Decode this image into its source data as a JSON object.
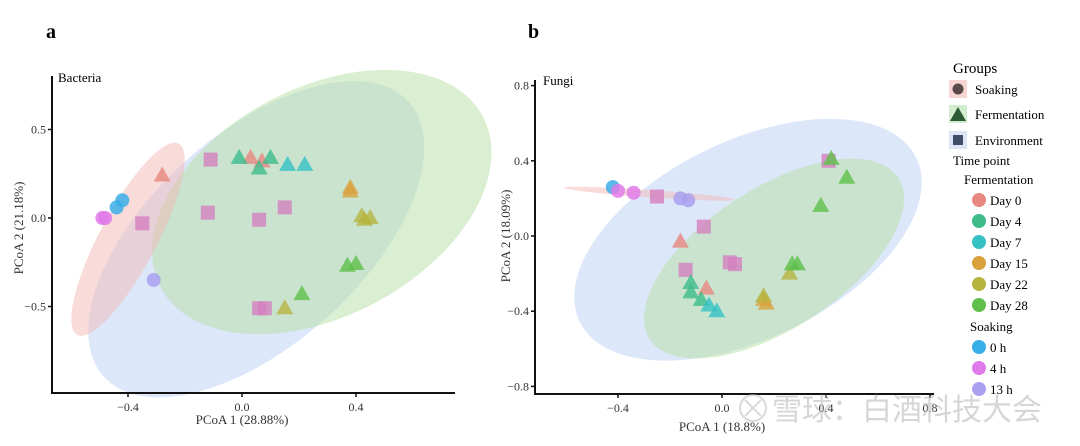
{
  "colors": {
    "day0": "#e8877f",
    "day4": "#3dbb8b",
    "day7": "#35c2c4",
    "day15": "#d9a13b",
    "day22": "#b7b43e",
    "day28": "#5fbf4a",
    "soak0h": "#3aaee8",
    "soak4h": "#e07ae8",
    "soak13h": "#a9a1ef",
    "env_square": "#d47fbf",
    "ellipse_soaking": "#f4b9b5",
    "ellipse_fermentation": "#b5dfa4",
    "ellipse_environment": "#b9cff6",
    "group_soaking_icon": "#5a4a4a",
    "group_fermentation_icon": "#2f5a36",
    "group_environment_icon": "#3f4e66"
  },
  "chart_data": [
    {
      "type": "scatter",
      "panel_label": "a",
      "title": "Bacteria",
      "xlabel": "PCoA 1 (28.88%)",
      "ylabel": "PCoA 2 (21.18%)",
      "xlim": [
        -0.78,
        1.05
      ],
      "ylim": [
        -0.98,
        0.78
      ],
      "xticks": [
        -0.4,
        0.0,
        0.4
      ],
      "xtick_labels": [
        "-0.4",
        "0.0",
        "0.4"
      ],
      "yticks": [
        -0.5,
        0.0,
        0.5
      ],
      "ytick_labels": [
        "-0.5",
        "0.0",
        "0.5"
      ],
      "grid": false,
      "ellipses": [
        {
          "group": "Environment",
          "cx": 0.05,
          "cy": -0.12,
          "rx": 0.72,
          "ry": 0.37,
          "angle": -42
        },
        {
          "group": "Fermentation",
          "cx": 0.28,
          "cy": 0.09,
          "rx": 0.64,
          "ry": 0.4,
          "angle": -28
        },
        {
          "group": "Soaking",
          "cx": -0.4,
          "cy": -0.12,
          "rx": 0.38,
          "ry": 0.1,
          "angle": -62
        }
      ],
      "points": [
        {
          "group": "Soaking",
          "time": "0 h",
          "x": -0.42,
          "y": 0.1
        },
        {
          "group": "Soaking",
          "time": "0 h",
          "x": -0.44,
          "y": 0.06
        },
        {
          "group": "Soaking",
          "time": "4 h",
          "x": -0.49,
          "y": 0.0
        },
        {
          "group": "Soaking",
          "time": "4 h",
          "x": -0.48,
          "y": 0.0
        },
        {
          "group": "Soaking",
          "time": "13 h",
          "x": -0.31,
          "y": -0.35
        },
        {
          "group": "Environment",
          "time": "",
          "x": -0.35,
          "y": -0.03
        },
        {
          "group": "Environment",
          "time": "",
          "x": -0.11,
          "y": 0.33
        },
        {
          "group": "Environment",
          "time": "",
          "x": -0.12,
          "y": 0.03
        },
        {
          "group": "Environment",
          "time": "",
          "x": 0.06,
          "y": -0.01
        },
        {
          "group": "Environment",
          "time": "",
          "x": 0.15,
          "y": 0.06
        },
        {
          "group": "Environment",
          "time": "",
          "x": 0.06,
          "y": -0.51
        },
        {
          "group": "Environment",
          "time": "",
          "x": 0.08,
          "y": -0.51
        },
        {
          "group": "Fermentation",
          "time": "Day 0",
          "x": -0.28,
          "y": 0.24
        },
        {
          "group": "Fermentation",
          "time": "Day 0",
          "x": 0.03,
          "y": 0.34
        },
        {
          "group": "Fermentation",
          "time": "Day 0",
          "x": 0.07,
          "y": 0.32
        },
        {
          "group": "Fermentation",
          "time": "Day 4",
          "x": -0.01,
          "y": 0.34
        },
        {
          "group": "Fermentation",
          "time": "Day 4",
          "x": 0.06,
          "y": 0.28
        },
        {
          "group": "Fermentation",
          "time": "Day 4",
          "x": 0.1,
          "y": 0.34
        },
        {
          "group": "Fermentation",
          "time": "Day 7",
          "x": 0.16,
          "y": 0.3
        },
        {
          "group": "Fermentation",
          "time": "Day 7",
          "x": 0.22,
          "y": 0.3
        },
        {
          "group": "Fermentation",
          "time": "Day 15",
          "x": 0.38,
          "y": 0.17
        },
        {
          "group": "Fermentation",
          "time": "Day 15",
          "x": 0.38,
          "y": 0.15
        },
        {
          "group": "Fermentation",
          "time": "Day 22",
          "x": 0.42,
          "y": 0.01
        },
        {
          "group": "Fermentation",
          "time": "Day 22",
          "x": 0.45,
          "y": 0.0
        },
        {
          "group": "Fermentation",
          "time": "Day 22",
          "x": 0.43,
          "y": -0.01
        },
        {
          "group": "Fermentation",
          "time": "Day 22",
          "x": 0.15,
          "y": -0.51
        },
        {
          "group": "Fermentation",
          "time": "Day 28",
          "x": 0.37,
          "y": -0.27
        },
        {
          "group": "Fermentation",
          "time": "Day 28",
          "x": 0.4,
          "y": -0.26
        },
        {
          "group": "Fermentation",
          "time": "Day 28",
          "x": 0.21,
          "y": -0.43
        }
      ]
    },
    {
      "type": "scatter",
      "panel_label": "b",
      "title": "Fungi",
      "xlabel": "PCoA 1 (18.8%)",
      "ylabel": "PCoA 2 (18.09%)",
      "xlim": [
        -0.74,
        0.82
      ],
      "ylim": [
        -0.83,
        0.83
      ],
      "xticks": [
        -0.4,
        0.0,
        0.4,
        0.8
      ],
      "xtick_labels": [
        "-0.4",
        "0.0",
        "0.4",
        "0.8"
      ],
      "yticks": [
        -0.8,
        -0.4,
        0.0,
        0.4,
        0.8
      ],
      "ytick_labels": [
        "-0.8",
        "-0.4",
        "0.0",
        "0.4",
        "0.8"
      ],
      "grid": false,
      "ellipses": [
        {
          "group": "Environment",
          "cx": 0.1,
          "cy": -0.02,
          "rx": 0.72,
          "ry": 0.38,
          "angle": -26
        },
        {
          "group": "Fermentation",
          "cx": 0.2,
          "cy": -0.12,
          "rx": 0.57,
          "ry": 0.27,
          "angle": -33
        },
        {
          "group": "Soaking",
          "cx": -0.28,
          "cy": 0.225,
          "rx": 0.33,
          "ry": 0.014,
          "angle": 4
        }
      ],
      "points": [
        {
          "group": "Soaking",
          "time": "0 h",
          "x": -0.42,
          "y": 0.26
        },
        {
          "group": "Soaking",
          "time": "4 h",
          "x": -0.4,
          "y": 0.24
        },
        {
          "group": "Soaking",
          "time": "4 h",
          "x": -0.34,
          "y": 0.23
        },
        {
          "group": "Soaking",
          "time": "13 h",
          "x": -0.16,
          "y": 0.2
        },
        {
          "group": "Soaking",
          "time": "13 h",
          "x": -0.13,
          "y": 0.19
        },
        {
          "group": "Environment",
          "time": "",
          "x": -0.25,
          "y": 0.21
        },
        {
          "group": "Environment",
          "time": "",
          "x": -0.07,
          "y": 0.05
        },
        {
          "group": "Environment",
          "time": "",
          "x": -0.14,
          "y": -0.18
        },
        {
          "group": "Environment",
          "time": "",
          "x": 0.03,
          "y": -0.14
        },
        {
          "group": "Environment",
          "time": "",
          "x": 0.05,
          "y": -0.15
        },
        {
          "group": "Environment",
          "time": "",
          "x": 0.41,
          "y": 0.4
        },
        {
          "group": "Fermentation",
          "time": "Day 0",
          "x": -0.16,
          "y": -0.03
        },
        {
          "group": "Fermentation",
          "time": "Day 0",
          "x": -0.06,
          "y": -0.28
        },
        {
          "group": "Fermentation",
          "time": "Day 4",
          "x": -0.12,
          "y": -0.25
        },
        {
          "group": "Fermentation",
          "time": "Day 4",
          "x": -0.12,
          "y": -0.3
        },
        {
          "group": "Fermentation",
          "time": "Day 4",
          "x": -0.08,
          "y": -0.34
        },
        {
          "group": "Fermentation",
          "time": "Day 7",
          "x": -0.05,
          "y": -0.37
        },
        {
          "group": "Fermentation",
          "time": "Day 7",
          "x": -0.02,
          "y": -0.4
        },
        {
          "group": "Fermentation",
          "time": "Day 15",
          "x": 0.16,
          "y": -0.34
        },
        {
          "group": "Fermentation",
          "time": "Day 15",
          "x": 0.17,
          "y": -0.36
        },
        {
          "group": "Fermentation",
          "time": "Day 22",
          "x": 0.16,
          "y": -0.32
        },
        {
          "group": "Fermentation",
          "time": "Day 22",
          "x": 0.26,
          "y": -0.2
        },
        {
          "group": "Fermentation",
          "time": "Day 28",
          "x": 0.27,
          "y": -0.15
        },
        {
          "group": "Fermentation",
          "time": "Day 28",
          "x": 0.29,
          "y": -0.15
        },
        {
          "group": "Fermentation",
          "time": "Day 28",
          "x": 0.38,
          "y": 0.16
        },
        {
          "group": "Fermentation",
          "time": "Day 28",
          "x": 0.48,
          "y": 0.31
        },
        {
          "group": "Fermentation",
          "time": "Day 28",
          "x": 0.42,
          "y": 0.41
        }
      ]
    }
  ],
  "legend": {
    "placement": "right",
    "groups_title": "Groups",
    "groups": [
      {
        "label": "Soaking",
        "shape": "circle"
      },
      {
        "label": "Fermentation",
        "shape": "triangle"
      },
      {
        "label": "Environment",
        "shape": "square"
      }
    ],
    "time_title": "Time point",
    "fermentation_title": "Fermentation",
    "fermentation_items": [
      "Day 0",
      "Day 4",
      "Day 7",
      "Day 15",
      "Day 22",
      "Day 28"
    ],
    "soaking_title": "Soaking",
    "soaking_items": [
      "0 h",
      "4 h",
      "13 h"
    ]
  },
  "watermark": "雪球：白酒科技大会"
}
